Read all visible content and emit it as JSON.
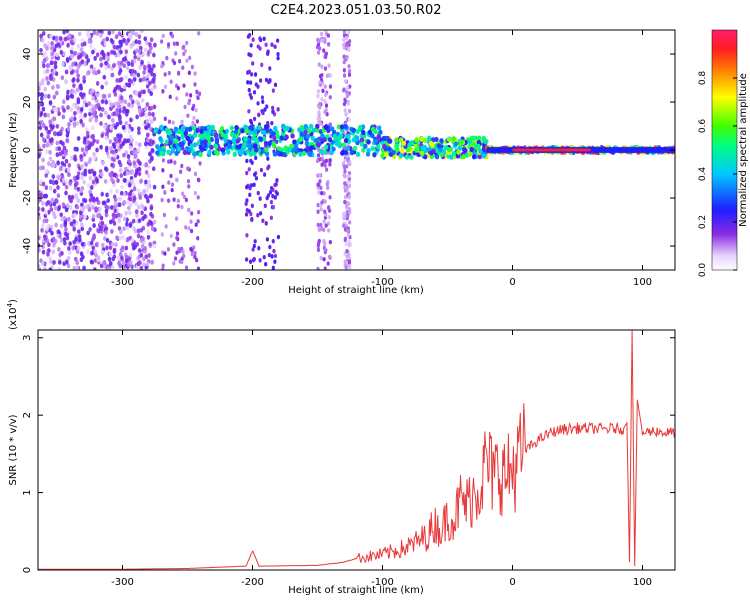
{
  "title": "C2E4.2023.051.03.50.R02",
  "colors": {
    "snr_line": "#e83a3a",
    "axis": "#000000"
  },
  "chart_data": [
    {
      "type": "heatmap",
      "xlabel": "Height of straight line (km)",
      "ylabel": "Frequency (Hz)",
      "xlim": [
        -365,
        125
      ],
      "ylim": [
        -50,
        50
      ],
      "x_ticks": [
        -300,
        -200,
        -100,
        0,
        100
      ],
      "x_tick_labels": [
        "-300",
        "-200",
        "-100",
        "0",
        "100"
      ],
      "y_ticks": [
        -40,
        -20,
        0,
        20,
        40
      ],
      "y_tick_labels": [
        "-40",
        "-20",
        "0",
        "20",
        "40"
      ],
      "colorbar": {
        "label": "Normalized spectral amplitude",
        "range": [
          0.0,
          1.0
        ],
        "ticks": [
          0.0,
          0.2,
          0.4,
          0.6,
          0.8
        ],
        "tick_labels": [
          "0.0",
          "0.2",
          "0.4",
          "0.6",
          "0.8"
        ],
        "colormap": "hsv-reverse (purple → blue → cyan → green → yellow → red)"
      },
      "features": [
        {
          "x_range": [
            -365,
            -275
          ],
          "description": "broadband scattered low-amplitude noise",
          "amplitude": 0.1
        },
        {
          "x_range": [
            -275,
            -100
          ],
          "freq_center": 4,
          "freq_halfwidth": 6,
          "amplitude": 0.5
        },
        {
          "x_range": [
            -100,
            -20
          ],
          "freq_center": 1,
          "freq_halfwidth": 4,
          "amplitude": 0.7
        },
        {
          "x_range": [
            -20,
            125
          ],
          "freq_center": 0,
          "freq_halfwidth": 1,
          "amplitude": 1.0
        }
      ]
    },
    {
      "type": "line",
      "xlabel": "Height of straight line (km)",
      "ylabel": "SNR (10 * v/v)",
      "y_multiplier_label": "(x10",
      "y_multiplier_exponent": "4",
      "y_multiplier_close": ")",
      "xlim": [
        -365,
        125
      ],
      "ylim": [
        0,
        3.1
      ],
      "x_ticks": [
        -300,
        -200,
        -100,
        0,
        100
      ],
      "x_tick_labels": [
        "-300",
        "-200",
        "-100",
        "0",
        "100"
      ],
      "y_ticks": [
        0,
        1,
        2,
        3
      ],
      "y_tick_labels": [
        "0",
        "1",
        "2",
        "3"
      ],
      "series": [
        {
          "x": [
            -365,
            -300,
            -250,
            -205,
            -200,
            -195,
            -150,
            -130,
            -120,
            -100,
            -80,
            -65,
            -60,
            -55,
            -50,
            -45,
            -40,
            -35,
            -30,
            -25,
            -20,
            -15,
            -10,
            -5,
            0,
            10,
            20,
            30,
            40,
            50,
            60,
            70,
            80,
            85,
            88,
            90,
            92,
            94,
            96,
            100,
            110,
            118,
            125
          ],
          "y": [
            0.01,
            0.01,
            0.02,
            0.05,
            0.25,
            0.05,
            0.06,
            0.1,
            0.15,
            0.2,
            0.3,
            0.45,
            0.6,
            0.5,
            0.7,
            0.65,
            0.9,
            0.85,
            1.0,
            1.1,
            1.4,
            1.2,
            1.3,
            1.2,
            1.3,
            1.55,
            1.68,
            1.78,
            1.82,
            1.83,
            1.83,
            1.82,
            1.83,
            1.82,
            1.9,
            0.1,
            3.1,
            0.05,
            2.2,
            1.77,
            1.8,
            1.77,
            1.78
          ]
        }
      ]
    }
  ]
}
